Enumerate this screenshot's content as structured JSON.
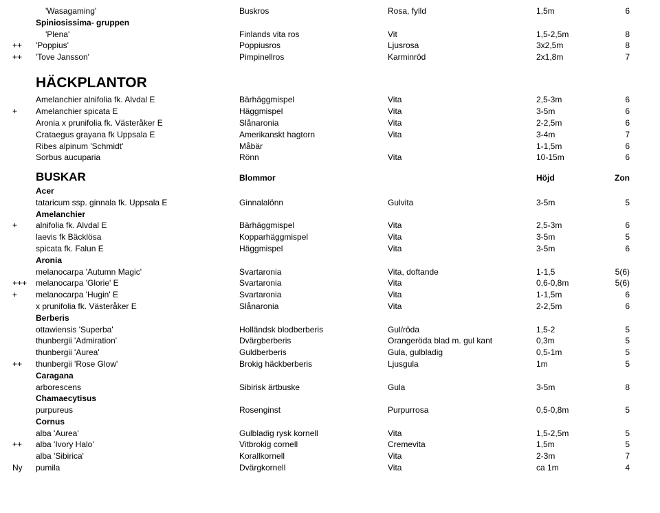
{
  "fontSizes": {
    "body": 12,
    "section": 21,
    "sub": 17
  },
  "colors": {
    "text": "#000000",
    "background": "#ffffff"
  },
  "columns": [
    "prefix",
    "name",
    "desc",
    "color",
    "height",
    "zone"
  ],
  "top_rows": [
    {
      "prefix": "",
      "name_indent": true,
      "name": "'Wasagaming'",
      "desc": "Buskros",
      "color": "Rosa, fylld",
      "height": "1,5m",
      "zone": "6"
    },
    {
      "prefix": "",
      "bold": true,
      "name": "Spiniosissima- gruppen"
    },
    {
      "prefix": "",
      "name_indent": true,
      "name": "'Plena'",
      "desc": "Finlands vita ros",
      "color": "Vit",
      "height": "1,5-2,5m",
      "zone": "8"
    },
    {
      "prefix": "++",
      "name": "'Poppius'",
      "desc": "Poppiusros",
      "color": "Ljusrosa",
      "height": "3x2,5m",
      "zone": "8"
    },
    {
      "prefix": "++",
      "name": "'Tove Jansson'",
      "desc": "Pimpinellros",
      "color": "Karminröd",
      "height": "2x1,8m",
      "zone": "7"
    }
  ],
  "hack_title": "HÄCKPLANTOR",
  "hack_rows": [
    {
      "prefix": "",
      "name": "Amelanchier alnifolia fk. Alvdal E",
      "desc": "Bärhäggmispel",
      "color": "Vita",
      "height": "2,5-3m",
      "zone": "6"
    },
    {
      "prefix": "+",
      "name": "Amelanchier spicata E",
      "desc": "Häggmispel",
      "color": "Vita",
      "height": "3-5m",
      "zone": "6"
    },
    {
      "prefix": "",
      "name": "Aronia x prunifolia fk. Västeråker E",
      "desc": "Slånaronia",
      "color": "Vita",
      "height": "2-2,5m",
      "zone": "6"
    },
    {
      "prefix": "",
      "name": "Crataegus grayana fk Uppsala E",
      "desc": "Amerikanskt hagtorn",
      "color": "Vita",
      "height": "3-4m",
      "zone": "7"
    },
    {
      "prefix": "",
      "name": "Ribes alpinum 'Schmidt'",
      "desc": "Måbär",
      "color": "",
      "height": "1-1,5m",
      "zone": "6"
    },
    {
      "prefix": "",
      "name": "Sorbus aucuparia",
      "desc": "Rönn",
      "color": "Vita",
      "height": "10-15m",
      "zone": "6"
    }
  ],
  "buskar_title": "BUSKAR",
  "buskar_header": {
    "desc": "Blommor",
    "height": "Höjd",
    "zone": "Zon"
  },
  "buskar_rows": [
    {
      "bold": true,
      "name": "Acer"
    },
    {
      "name": "tataricum ssp. ginnala fk. Uppsala E",
      "desc": "Ginnalalönn",
      "color": "Gulvita",
      "height": "3-5m",
      "zone": "5"
    },
    {
      "bold": true,
      "name": "Amelanchier"
    },
    {
      "prefix": "+",
      "name": "alnifolia fk. Alvdal E",
      "desc": "Bärhäggmispel",
      "color": "Vita",
      "height": "2,5-3m",
      "zone": "6"
    },
    {
      "name": "laevis fk Bäcklösa",
      "desc": "Kopparhäggmispel",
      "color": "Vita",
      "height": "3-5m",
      "zone": "5"
    },
    {
      "name": "spicata fk. Falun E",
      "desc": "Häggmispel",
      "color": "Vita",
      "height": "3-5m",
      "zone": "6"
    },
    {
      "bold": true,
      "name": "Aronia"
    },
    {
      "name": "melanocarpa 'Autumn Magic'",
      "desc": "Svartaronia",
      "color": "Vita, doftande",
      "height": "1-1,5",
      "zone": "5(6)"
    },
    {
      "prefix": "+++",
      "name": "melanocarpa 'Glorie' E",
      "desc": "Svartaronia",
      "color": "Vita",
      "height": "0,6-0,8m",
      "zone": "5(6)"
    },
    {
      "prefix": "+",
      "name": "melanocarpa 'Hugin' E",
      "desc": "Svartaronia",
      "color": "Vita",
      "height": "1-1,5m",
      "zone": "6"
    },
    {
      "name": "x prunifolia fk. Västeråker E",
      "desc": "Slånaronia",
      "color": "Vita",
      "height": "2-2,5m",
      "zone": "6"
    },
    {
      "bold": true,
      "name": "Berberis"
    },
    {
      "name": "ottawiensis 'Superba'",
      "desc": "Holländsk blodberberis",
      "color": "Gul/röda",
      "height": "1,5-2",
      "zone": "5"
    },
    {
      "name": "thunbergii 'Admiration'",
      "desc": "Dvärgberberis",
      "color": "Orangeröda blad m. gul kant",
      "height": "0,3m",
      "zone": "5"
    },
    {
      "name": "thunbergii 'Aurea'",
      "desc": "Guldberberis",
      "color": "Gula, gulbladig",
      "height": "0,5-1m",
      "zone": "5"
    },
    {
      "prefix": "++",
      "name": "thunbergii 'Rose Glow'",
      "desc": "Brokig häckberberis",
      "color": "Ljusgula",
      "height": "1m",
      "zone": "5"
    },
    {
      "bold": true,
      "name": "Caragana"
    },
    {
      "name": "arborescens",
      "desc": "Sibirisk ärtbuske",
      "color": "Gula",
      "height": "3-5m",
      "zone": "8"
    },
    {
      "bold": true,
      "name": "Chamaecytisus"
    },
    {
      "name": "purpureus",
      "desc": "Rosenginst",
      "color": "Purpurrosa",
      "height": "0,5-0,8m",
      "zone": "5"
    },
    {
      "bold": true,
      "name": "Cornus"
    },
    {
      "name": "alba 'Aurea'",
      "desc": "Gulbladig rysk kornell",
      "color": "Vita",
      "height": "1,5-2,5m",
      "zone": "5"
    },
    {
      "prefix": "++",
      "name": "alba 'Ivory Halo'",
      "desc": "Vitbrokig cornell",
      "color": "Cremevita",
      "height": "1,5m",
      "zone": "5"
    },
    {
      "name": "alba 'Sibirica'",
      "desc": "Korallkornell",
      "color": "Vita",
      "height": "2-3m",
      "zone": "7"
    },
    {
      "prefix": "Ny",
      "name": "pumila",
      "desc": "Dvärgkornell",
      "color": "Vita",
      "height": "ca 1m",
      "zone": "4"
    }
  ]
}
